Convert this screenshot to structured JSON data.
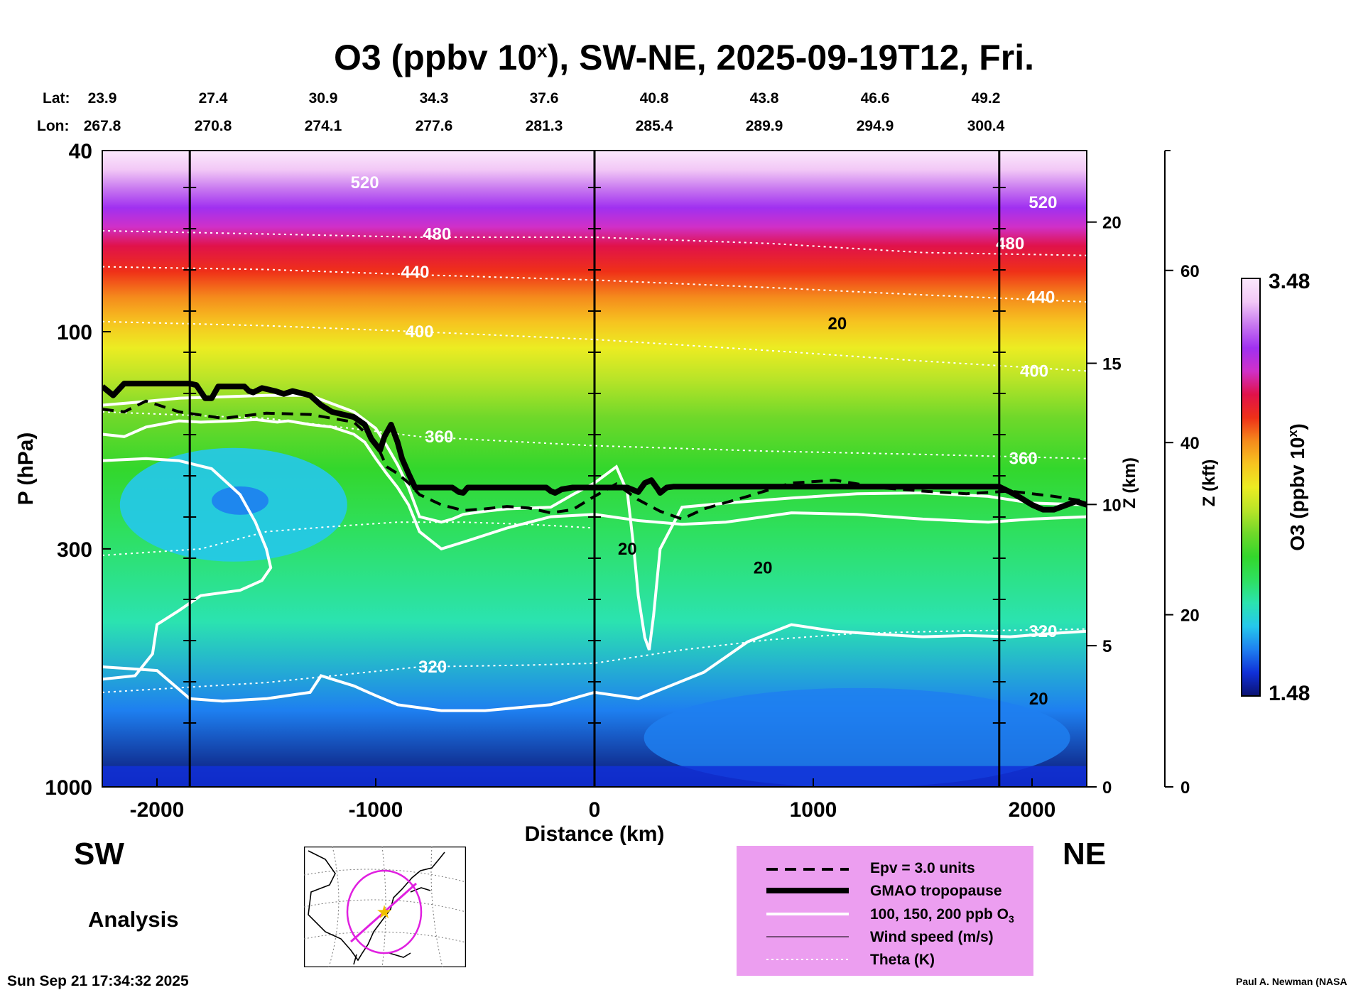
{
  "title": {
    "main": "O3 (ppbv 10",
    "sup": "x",
    "rest": "), SW-NE, 2025-09-19T12, Fri."
  },
  "lat": {
    "label": "Lat:",
    "values": [
      "23.9",
      "27.4",
      "30.9",
      "34.3",
      "37.6",
      "40.8",
      "43.8",
      "46.6",
      "49.2"
    ]
  },
  "lon": {
    "label": "Lon:",
    "values": [
      "267.8",
      "270.8",
      "274.1",
      "277.6",
      "281.3",
      "285.4",
      "289.9",
      "294.9",
      "300.4"
    ]
  },
  "directions": {
    "left": "SW",
    "right": "NE"
  },
  "analysis_label": "Analysis",
  "timestamp": "Sun Sep 21 17:34:32 2025",
  "credit": "Paul A. Newman (NASA",
  "colors": {
    "ozone_scale": [
      "#0b1270",
      "#1030d8",
      "#1e7ff0",
      "#25c8ec",
      "#2be3b0",
      "#2ee060",
      "#33d72c",
      "#6fd82a",
      "#b8e428",
      "#ecec22",
      "#f6c420",
      "#f58a1c",
      "#ef3018",
      "#e0124a",
      "#d030c8",
      "#a030f0",
      "#c878f0",
      "#f2c8f6",
      "#fbe8fc"
    ],
    "legend_bg": "#ec9ef0"
  },
  "legend": {
    "items": [
      {
        "label": "Epv = 3.0 units",
        "style": "dashed-black"
      },
      {
        "label": "GMAO tropopause",
        "style": "thick-black"
      },
      {
        "label": "100, 150, 200 ppb O",
        "sub": "3",
        "style": "white"
      },
      {
        "label": "Wind speed (m/s)",
        "style": "thin-black"
      },
      {
        "label": "Theta (K)",
        "style": "dotted-white"
      }
    ]
  },
  "chart_data": {
    "type": "heatmap",
    "xlabel": "Distance (km)",
    "ylabel": "P (hPa)",
    "xlim": [
      -2250,
      2250
    ],
    "ylim_pressure_hpa": [
      1000,
      40
    ],
    "x_ticks": [
      "-2000",
      "-1000",
      "0",
      "1000",
      "2000"
    ],
    "x_tick_values": [
      -2000,
      -1000,
      0,
      1000,
      2000
    ],
    "p_ticks": [
      "40",
      "100",
      "300",
      "1000"
    ],
    "p_tick_values": [
      40,
      100,
      300,
      1000
    ],
    "right_axes": [
      {
        "label": "Z (km)",
        "ticks": [
          "0",
          "5",
          "10",
          "15",
          "20"
        ],
        "values": [
          0,
          5,
          10,
          15,
          20
        ]
      },
      {
        "label": "Z (kft)",
        "ticks": [
          "0",
          "20",
          "40",
          "60"
        ],
        "values": [
          0,
          20,
          40,
          60
        ]
      }
    ],
    "colorbar": {
      "label": "O3 (ppbv 10",
      "sup": "x",
      "label_end": ")",
      "min": "1.48",
      "max": "3.48",
      "range": [
        1.48,
        3.48
      ]
    },
    "vertical_reference_lines_km": [
      -1850,
      0,
      1850
    ],
    "theta_labels": [
      {
        "text": "520",
        "x": -1050,
        "p": 47
      },
      {
        "text": "480",
        "x": -720,
        "p": 61
      },
      {
        "text": "440",
        "x": -820,
        "p": 74
      },
      {
        "text": "400",
        "x": -800,
        "p": 100
      },
      {
        "text": "360",
        "x": -710,
        "p": 170
      },
      {
        "text": "320",
        "x": -740,
        "p": 545
      },
      {
        "text": "520",
        "x": 2050,
        "p": 52
      },
      {
        "text": "480",
        "x": 1900,
        "p": 64
      },
      {
        "text": "440",
        "x": 2040,
        "p": 84
      },
      {
        "text": "400",
        "x": 2010,
        "p": 122
      },
      {
        "text": "360",
        "x": 1960,
        "p": 190
      },
      {
        "text": "320",
        "x": 2050,
        "p": 455
      }
    ],
    "wind_labels": [
      {
        "text": "20",
        "x": 1110,
        "p": 96
      },
      {
        "text": "20",
        "x": 150,
        "p": 300
      },
      {
        "text": "20",
        "x": 770,
        "p": 330
      },
      {
        "text": "20",
        "x": 2030,
        "p": 640
      }
    ],
    "series": [
      {
        "name": "GMAO tropopause",
        "x": [
          -2250,
          -2200,
          -2150,
          -2050,
          -1850,
          -1820,
          -1780,
          -1750,
          -1720,
          -1600,
          -1580,
          -1560,
          -1520,
          -1460,
          -1420,
          -1380,
          -1300,
          -1250,
          -1200,
          -1150,
          -1100,
          -1050,
          -1020,
          -980,
          -960,
          -930,
          -900,
          -880,
          -850,
          -820,
          -700,
          -650,
          -620,
          -600,
          -580,
          -450,
          -300,
          -220,
          -200,
          -180,
          -150,
          -100,
          -50,
          0,
          100,
          150,
          200,
          230,
          260,
          290,
          300,
          330,
          360,
          400,
          600,
          1000,
          1500,
          1700,
          1850,
          1900,
          1950,
          2000,
          2050,
          2100,
          2200,
          2250
        ],
        "p": [
          132,
          138,
          130,
          130,
          130,
          131,
          140,
          140,
          132,
          132,
          135,
          136,
          133,
          135,
          137,
          135,
          138,
          145,
          150,
          152,
          154,
          160,
          172,
          182,
          170,
          160,
          175,
          190,
          205,
          220,
          220,
          220,
          225,
          226,
          220,
          220,
          220,
          220,
          224,
          226,
          222,
          220,
          220,
          220,
          220,
          220,
          225,
          215,
          212,
          222,
          226,
          220,
          219,
          219,
          219,
          219,
          219,
          219,
          219,
          225,
          232,
          240,
          246,
          246,
          236,
          240
        ]
      },
      {
        "name": "Epv = 3.0 units",
        "x": [
          -2250,
          -2150,
          -2050,
          -1900,
          -1700,
          -1500,
          -1300,
          -1100,
          -1000,
          -950,
          -900,
          -850,
          -800,
          -700,
          -600,
          -500,
          -400,
          -300,
          -200,
          -100,
          0,
          100,
          200,
          300,
          400,
          500,
          700,
          900,
          1100,
          1300,
          1500,
          1700,
          1900,
          2100,
          2250
        ],
        "p": [
          148,
          150,
          142,
          150,
          155,
          151,
          152,
          158,
          175,
          198,
          205,
          215,
          228,
          240,
          247,
          245,
          242,
          244,
          250,
          246,
          230,
          216,
          234,
          248,
          258,
          245,
          230,
          215,
          212,
          220,
          224,
          227,
          224,
          230,
          236
        ]
      },
      {
        "name": "100, 150, 200 ppb O3",
        "x": [
          -2250,
          -2100,
          -1900,
          -1700,
          -1500,
          -1300,
          -1100,
          -1000,
          -950,
          -900,
          -850,
          -800,
          -700,
          -650,
          -600,
          -500,
          -400,
          -300,
          -200,
          -100,
          0,
          100,
          150,
          180,
          200,
          230,
          250,
          270,
          300,
          400,
          600,
          900,
          1200,
          1500,
          1800,
          2000,
          2250
        ],
        "p": [
          145,
          143,
          140,
          139,
          138,
          138,
          150,
          163,
          178,
          196,
          220,
          255,
          262,
          258,
          252,
          248,
          245,
          244,
          243,
          228,
          215,
          198,
          225,
          300,
          380,
          470,
          500,
          420,
          300,
          243,
          238,
          232,
          227,
          226,
          230,
          238,
          240
        ]
      },
      {
        "name": "100, 150, 200 ppb O3",
        "x": [
          -2250,
          -2150,
          -2050,
          -1900,
          -1800,
          -1650,
          -1550,
          -1450,
          -1400,
          -1300,
          -1200,
          -1100,
          -1050,
          -1000,
          -950,
          -900,
          -850,
          -800,
          -700,
          -600,
          -400,
          -200,
          0,
          200,
          400,
          600,
          900,
          1200,
          1500,
          1800,
          2000,
          2250
        ],
        "p": [
          168,
          170,
          162,
          157,
          158,
          157,
          156,
          158,
          157,
          160,
          162,
          168,
          175,
          190,
          205,
          220,
          240,
          275,
          300,
          290,
          270,
          255,
          252,
          260,
          265,
          262,
          250,
          252,
          258,
          262,
          258,
          255
        ]
      },
      {
        "name": "100, 150, 200 ppb O3",
        "x": [
          -2250,
          -2050,
          -1900,
          -1750,
          -1620,
          -1550,
          -1500,
          -1480,
          -1520,
          -1620,
          -1800,
          -1900,
          -2000,
          -2020,
          -2100,
          -2250
        ],
        "p": [
          192,
          190,
          192,
          200,
          228,
          262,
          300,
          330,
          352,
          370,
          380,
          410,
          440,
          510,
          570,
          580
        ]
      },
      {
        "name": "100, 150, 200 ppb O3",
        "x": [
          -2250,
          -2000,
          -1850,
          -1700,
          -1500,
          -1300,
          -1250,
          -1100,
          -1000,
          -900,
          -700,
          -500,
          -200,
          0,
          200,
          500,
          700,
          900,
          1100,
          1300,
          1500,
          1700,
          1900,
          2100,
          2250
        ],
        "p": [
          545,
          555,
          640,
          648,
          640,
          620,
          570,
          600,
          630,
          660,
          680,
          680,
          660,
          620,
          640,
          560,
          480,
          440,
          455,
          462,
          468,
          465,
          468,
          460,
          455
        ]
      },
      {
        "name": "Theta (K)",
        "x": [
          -2250,
          -1500,
          -800,
          0,
          800,
          1500,
          2250
        ],
        "p": [
          60,
          61,
          62,
          62,
          64,
          67,
          68
        ]
      },
      {
        "name": "Theta (K)",
        "x": [
          -2250,
          -1500,
          -800,
          0,
          800,
          1500,
          2250
        ],
        "p": [
          72,
          73,
          75,
          77,
          80,
          83,
          86
        ]
      },
      {
        "name": "Theta (K)",
        "x": [
          -2250,
          -1500,
          -800,
          0,
          800,
          1500,
          2250
        ],
        "p": [
          95,
          97,
          100,
          104,
          110,
          116,
          122
        ]
      },
      {
        "name": "Theta (K)",
        "x": [
          -2250,
          -1500,
          -800,
          0,
          800,
          1500,
          2250
        ],
        "p": [
          150,
          155,
          170,
          178,
          183,
          186,
          190
        ]
      },
      {
        "name": "Theta (K)",
        "x": [
          -2250,
          -1800,
          -1500,
          -1200,
          -900,
          -600,
          -300,
          0
        ],
        "p": [
          310,
          300,
          275,
          268,
          262,
          262,
          265,
          270
        ]
      },
      {
        "name": "Theta (K)",
        "x": [
          -2250,
          -1500,
          -800,
          -300,
          0,
          400,
          800,
          1200,
          1600,
          2000,
          2250
        ],
        "p": [
          620,
          590,
          545,
          540,
          535,
          500,
          475,
          460,
          455,
          452,
          450
        ]
      }
    ]
  }
}
